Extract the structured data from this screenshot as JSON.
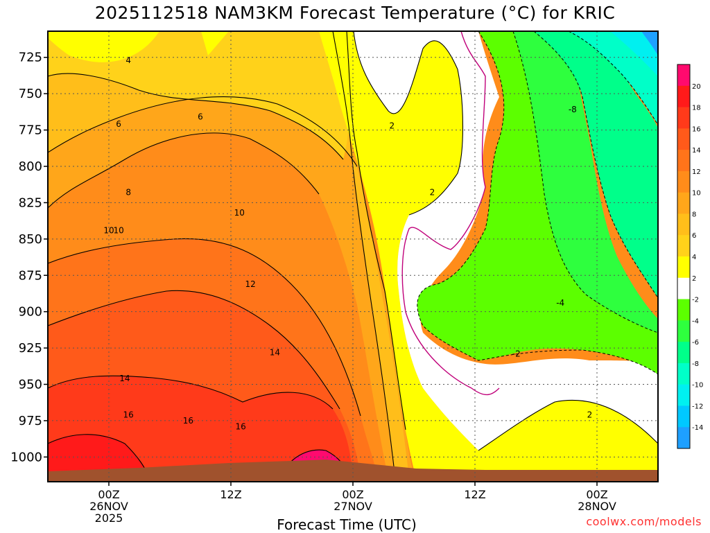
{
  "title": "2025112518 NAM3KM Forecast Temperature (°C) for KRIC",
  "credit": "coolwx.com/models",
  "chart_data": {
    "type": "heatmap",
    "title": "2025112518 NAM3KM Forecast Temperature (°C) for KRIC",
    "xlabel": "Forecast Time (UTC)",
    "ylabel": "",
    "y_axis": {
      "reversed": true,
      "range": [
        1017,
        707
      ],
      "ticks": [
        725,
        750,
        775,
        800,
        825,
        850,
        875,
        900,
        925,
        950,
        975,
        1000
      ]
    },
    "x_axis": {
      "range_hours": [
        -5,
        45
      ],
      "ticks": [
        {
          "hour": 0,
          "lines": [
            "00Z",
            "26NOV",
            "2025"
          ]
        },
        {
          "hour": 10,
          "lines": [
            "12Z"
          ]
        },
        {
          "hour": 20,
          "lines": [
            "00Z",
            "27NOV"
          ]
        },
        {
          "hour": 30,
          "lines": [
            "12Z"
          ]
        },
        {
          "hour": 40,
          "lines": [
            "00Z",
            "28NOV"
          ]
        }
      ]
    },
    "grid": true,
    "colorbar": {
      "labels": [
        "20",
        "18",
        "16",
        "14",
        "12",
        "10",
        "8",
        "6",
        "4",
        "2",
        "-2",
        "-4",
        "-6",
        "-8",
        "-10",
        "-12",
        "-14"
      ],
      "bands": [
        {
          "color": "#ff0a6e"
        },
        {
          "color": "#ff1a1a"
        },
        {
          "color": "#ff3a1a"
        },
        {
          "color": "#ff5a1a"
        },
        {
          "color": "#ff741a"
        },
        {
          "color": "#ff8c1a"
        },
        {
          "color": "#ffa61a"
        },
        {
          "color": "#ffbe1a"
        },
        {
          "color": "#ffd21a"
        },
        {
          "color": "#ffff00"
        },
        {
          "color": "#ffffff"
        },
        {
          "color": "#5cff00"
        },
        {
          "color": "#2eff3e"
        },
        {
          "color": "#00ff8a"
        },
        {
          "color": "#00ffc8"
        },
        {
          "color": "#00f0f0"
        },
        {
          "color": "#00c8ff"
        },
        {
          "color": "#1ea0ff"
        }
      ]
    },
    "contour_labels": [
      {
        "text": "4",
        "hour": 1.6,
        "p": 727
      },
      {
        "text": "6",
        "hour": 0.8,
        "p": 771
      },
      {
        "text": "6",
        "hour": 7.5,
        "p": 766
      },
      {
        "text": "8",
        "hour": 1.6,
        "p": 818
      },
      {
        "text": "10",
        "hour": 0,
        "p": 844
      },
      {
        "text": "10",
        "hour": 0.8,
        "p": 844
      },
      {
        "text": "10",
        "hour": 10.7,
        "p": 832
      },
      {
        "text": "12",
        "hour": 11.6,
        "p": 881
      },
      {
        "text": "14",
        "hour": 1.3,
        "p": 946
      },
      {
        "text": "14",
        "hour": 13.6,
        "p": 928
      },
      {
        "text": "16",
        "hour": 1.6,
        "p": 971
      },
      {
        "text": "16",
        "hour": 6.5,
        "p": 975
      },
      {
        "text": "16",
        "hour": 10.8,
        "p": 979
      },
      {
        "text": "2",
        "hour": 23.2,
        "p": 772
      },
      {
        "text": "2",
        "hour": 26.5,
        "p": 818
      },
      {
        "text": "2",
        "hour": 39.4,
        "p": 971
      },
      {
        "text": "-2",
        "hour": 33.4,
        "p": 929
      },
      {
        "text": "-4",
        "hour": 37,
        "p": 894
      },
      {
        "text": "-8",
        "hour": 38,
        "p": 761
      }
    ]
  }
}
